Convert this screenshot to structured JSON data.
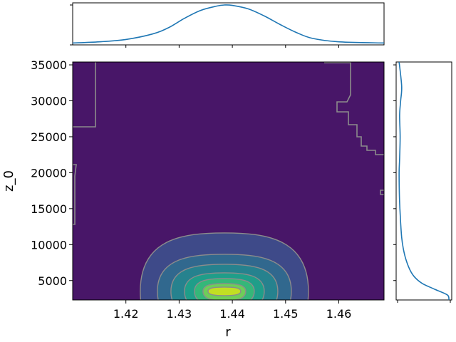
{
  "chart_data": {
    "type": "heatmap",
    "kind": "joint-kde",
    "xlabel": "r",
    "ylabel": "z_0",
    "xlim": [
      1.41,
      1.4685
    ],
    "ylim": [
      2300,
      35400
    ],
    "x_ticks": [
      1.42,
      1.43,
      1.44,
      1.45,
      1.46
    ],
    "x_tick_labels": [
      "1.42",
      "1.43",
      "1.44",
      "1.45",
      "1.46"
    ],
    "y_ticks": [
      5000,
      10000,
      15000,
      20000,
      25000,
      30000,
      35000
    ],
    "y_tick_labels": [
      "5000",
      "10000",
      "15000",
      "20000",
      "25000",
      "30000",
      "35000"
    ],
    "density_peak": {
      "x": 1.4385,
      "y": 3500
    },
    "contour_levels": 7,
    "colormap": [
      "#481668",
      "#3e4a89",
      "#31688e",
      "#26828e",
      "#1f9e89",
      "#35b779",
      "#6ece58",
      "#c2df23"
    ],
    "contour_line_color": "#8c8c8c",
    "marginal_x": {
      "x": [
        1.41,
        1.415,
        1.42,
        1.425,
        1.428,
        1.431,
        1.434,
        1.437,
        1.4385,
        1.44,
        1.443,
        1.446,
        1.449,
        1.452,
        1.455,
        1.46,
        1.4685
      ],
      "density": [
        0.03,
        0.06,
        0.12,
        0.26,
        0.42,
        0.66,
        0.86,
        0.97,
        1.0,
        0.99,
        0.9,
        0.72,
        0.5,
        0.3,
        0.15,
        0.06,
        0.03
      ]
    },
    "marginal_y": {
      "y": [
        2300,
        3000,
        3800,
        4600,
        5500,
        6500,
        8000,
        9500,
        11000,
        13000,
        15000,
        17000,
        20000,
        22000,
        25000,
        28000,
        30000,
        32000,
        35400
      ],
      "density": [
        1.0,
        0.97,
        0.72,
        0.48,
        0.33,
        0.24,
        0.16,
        0.11,
        0.08,
        0.06,
        0.045,
        0.035,
        0.03,
        0.04,
        0.05,
        0.04,
        0.06,
        0.08,
        0.03
      ]
    },
    "line_color": "#1f77b4",
    "grid": false,
    "legend": "none"
  }
}
